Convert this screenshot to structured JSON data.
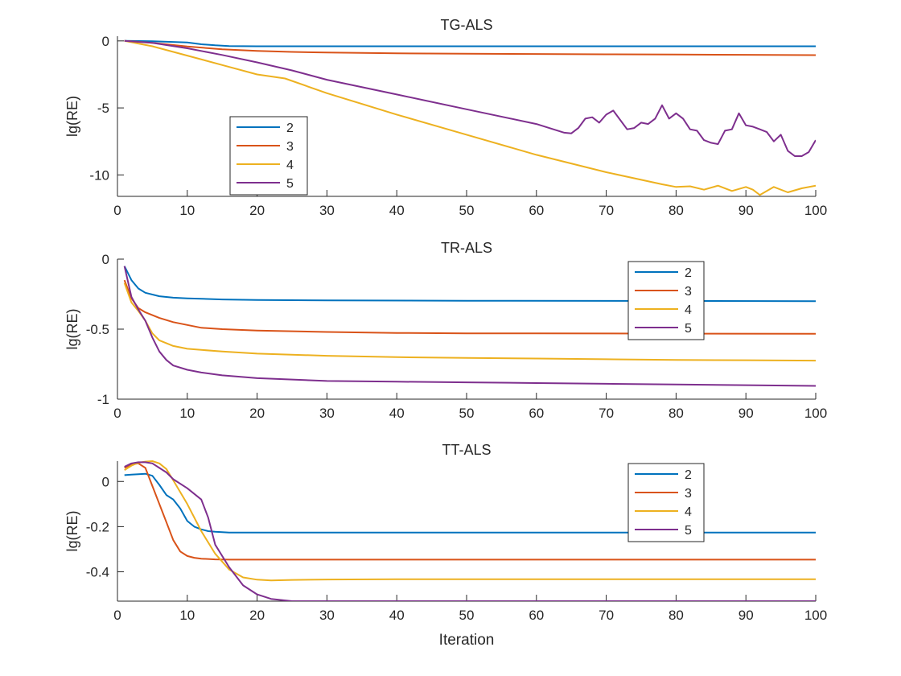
{
  "chart_data": [
    {
      "type": "line",
      "title": "TG-ALS",
      "xlabel": "",
      "ylabel": "lg(RE)",
      "xlim": [
        0,
        100
      ],
      "ylim": [
        -11.6,
        0.35
      ],
      "xticks": [
        0,
        10,
        20,
        30,
        40,
        50,
        60,
        70,
        80,
        90,
        100
      ],
      "yticks": [
        0,
        -5,
        -10
      ],
      "ytick_labels": [
        "0",
        "-5",
        "-10"
      ],
      "xtick_labels": [
        "0",
        "10",
        "20",
        "30",
        "40",
        "50",
        "60",
        "70",
        "80",
        "90",
        "100"
      ],
      "legend": "middle-left",
      "series": [
        {
          "name": "2",
          "color": "#0072BD",
          "x": [
            1,
            5,
            10,
            12,
            14,
            16,
            20,
            30,
            100
          ],
          "y": [
            0,
            -0.03,
            -0.12,
            -0.25,
            -0.33,
            -0.38,
            -0.4,
            -0.4,
            -0.4
          ]
        },
        {
          "name": "3",
          "color": "#D95319",
          "x": [
            1,
            5,
            10,
            15,
            20,
            25,
            30,
            40,
            50,
            60,
            70,
            80,
            90,
            100
          ],
          "y": [
            0,
            -0.15,
            -0.42,
            -0.62,
            -0.75,
            -0.82,
            -0.87,
            -0.93,
            -0.96,
            -0.98,
            -1.0,
            -1.02,
            -1.04,
            -1.06
          ]
        },
        {
          "name": "4",
          "color": "#EDB120",
          "x": [
            1,
            5,
            10,
            15,
            20,
            24,
            30,
            40,
            50,
            60,
            70,
            78,
            80,
            82,
            84,
            86,
            88,
            90,
            91,
            92,
            94,
            96,
            98,
            100
          ],
          "y": [
            0,
            -0.4,
            -1.1,
            -1.8,
            -2.5,
            -2.8,
            -3.9,
            -5.5,
            -7.0,
            -8.5,
            -9.8,
            -10.7,
            -10.9,
            -10.85,
            -11.1,
            -10.8,
            -11.2,
            -10.9,
            -11.1,
            -11.5,
            -10.9,
            -11.3,
            -11.0,
            -10.8
          ]
        },
        {
          "name": "5",
          "color": "#7E2F8E",
          "x": [
            1,
            5,
            10,
            15,
            20,
            25,
            30,
            40,
            50,
            60,
            64,
            65,
            66,
            67,
            68,
            69,
            70,
            71,
            72,
            73,
            74,
            75,
            76,
            77,
            78,
            79,
            80,
            81,
            82,
            83,
            84,
            85,
            86,
            87,
            88,
            89,
            90,
            91,
            92,
            93,
            94,
            95,
            96,
            97,
            98,
            99,
            100
          ],
          "y": [
            0,
            -0.15,
            -0.55,
            -1.05,
            -1.6,
            -2.2,
            -2.9,
            -4.0,
            -5.1,
            -6.2,
            -6.85,
            -6.9,
            -6.5,
            -5.8,
            -5.7,
            -6.1,
            -5.5,
            -5.2,
            -5.9,
            -6.6,
            -6.5,
            -6.1,
            -6.2,
            -5.8,
            -4.8,
            -5.8,
            -5.4,
            -5.8,
            -6.6,
            -6.7,
            -7.4,
            -7.6,
            -7.7,
            -6.7,
            -6.6,
            -5.4,
            -6.3,
            -6.4,
            -6.6,
            -6.8,
            -7.5,
            -7.0,
            -8.2,
            -8.6,
            -8.6,
            -8.3,
            -7.4
          ]
        }
      ]
    },
    {
      "type": "line",
      "title": "TR-ALS",
      "xlabel": "",
      "ylabel": "lg(RE)",
      "xlim": [
        0,
        100
      ],
      "ylim": [
        -1,
        0
      ],
      "xticks": [
        0,
        10,
        20,
        30,
        40,
        50,
        60,
        70,
        80,
        90,
        100
      ],
      "yticks": [
        0,
        -0.5,
        -1
      ],
      "ytick_labels": [
        "0",
        "-0.5",
        "-1"
      ],
      "xtick_labels": [
        "0",
        "10",
        "20",
        "30",
        "40",
        "50",
        "60",
        "70",
        "80",
        "90",
        "100"
      ],
      "legend": "top-right",
      "series": [
        {
          "name": "2",
          "color": "#0072BD",
          "x": [
            1,
            2,
            3,
            4,
            6,
            8,
            10,
            15,
            20,
            30,
            50,
            100
          ],
          "y": [
            -0.05,
            -0.15,
            -0.21,
            -0.24,
            -0.265,
            -0.275,
            -0.28,
            -0.288,
            -0.292,
            -0.295,
            -0.297,
            -0.3
          ]
        },
        {
          "name": "3",
          "color": "#D95319",
          "x": [
            1,
            2,
            3,
            4,
            6,
            8,
            10,
            12,
            15,
            20,
            30,
            40,
            50,
            60,
            80,
            100
          ],
          "y": [
            -0.15,
            -0.28,
            -0.35,
            -0.38,
            -0.42,
            -0.45,
            -0.47,
            -0.49,
            -0.5,
            -0.51,
            -0.52,
            -0.527,
            -0.53,
            -0.53,
            -0.532,
            -0.533
          ]
        },
        {
          "name": "4",
          "color": "#EDB120",
          "x": [
            1,
            2,
            3,
            4,
            5,
            6,
            8,
            10,
            15,
            20,
            30,
            40,
            50,
            60,
            70,
            80,
            90,
            100
          ],
          "y": [
            -0.17,
            -0.31,
            -0.37,
            -0.44,
            -0.53,
            -0.58,
            -0.62,
            -0.64,
            -0.66,
            -0.675,
            -0.69,
            -0.7,
            -0.705,
            -0.71,
            -0.715,
            -0.72,
            -0.722,
            -0.725
          ]
        },
        {
          "name": "5",
          "color": "#7E2F8E",
          "x": [
            1,
            2,
            3,
            4,
            5,
            6,
            7,
            8,
            10,
            12,
            15,
            20,
            30,
            40,
            50,
            60,
            70,
            80,
            90,
            100
          ],
          "y": [
            -0.05,
            -0.27,
            -0.36,
            -0.44,
            -0.56,
            -0.66,
            -0.72,
            -0.76,
            -0.79,
            -0.81,
            -0.83,
            -0.85,
            -0.87,
            -0.875,
            -0.88,
            -0.885,
            -0.89,
            -0.895,
            -0.9,
            -0.905
          ]
        }
      ]
    },
    {
      "type": "line",
      "title": "TT-ALS",
      "xlabel": "Iteration",
      "ylabel": "lg(RE)",
      "xlim": [
        0,
        100
      ],
      "ylim": [
        -0.53,
        0.09
      ],
      "xticks": [
        0,
        10,
        20,
        30,
        40,
        50,
        60,
        70,
        80,
        90,
        100
      ],
      "yticks": [
        0,
        -0.2,
        -0.4
      ],
      "ytick_labels": [
        "0",
        "-0.2",
        "-0.4"
      ],
      "xtick_labels": [
        "0",
        "10",
        "20",
        "30",
        "40",
        "50",
        "60",
        "70",
        "80",
        "90",
        "100"
      ],
      "legend": "top-right",
      "series": [
        {
          "name": "2",
          "color": "#0072BD",
          "x": [
            1,
            2,
            3,
            4,
            5,
            6,
            7,
            8,
            9,
            10,
            11,
            12,
            13,
            14,
            16,
            20,
            30,
            100
          ],
          "y": [
            0.028,
            0.03,
            0.032,
            0.034,
            0.025,
            -0.015,
            -0.06,
            -0.08,
            -0.12,
            -0.175,
            -0.2,
            -0.212,
            -0.22,
            -0.223,
            -0.226,
            -0.226,
            -0.226,
            -0.226
          ]
        },
        {
          "name": "3",
          "color": "#D95319",
          "x": [
            1,
            2,
            3,
            4,
            5,
            6,
            7,
            8,
            9,
            10,
            11,
            12,
            14,
            16,
            20,
            30,
            100
          ],
          "y": [
            0.06,
            0.075,
            0.08,
            0.06,
            -0.02,
            -0.1,
            -0.18,
            -0.26,
            -0.31,
            -0.33,
            -0.338,
            -0.342,
            -0.345,
            -0.346,
            -0.346,
            -0.346,
            -0.346
          ]
        },
        {
          "name": "4",
          "color": "#EDB120",
          "x": [
            1,
            2,
            3,
            4,
            5,
            6,
            7,
            8,
            10,
            12,
            14,
            16,
            18,
            20,
            22,
            25,
            30,
            40,
            50,
            100
          ],
          "y": [
            0.05,
            0.07,
            0.083,
            0.088,
            0.09,
            0.08,
            0.055,
            0.005,
            -0.1,
            -0.22,
            -0.32,
            -0.39,
            -0.425,
            -0.435,
            -0.438,
            -0.436,
            -0.434,
            -0.433,
            -0.433,
            -0.433
          ]
        },
        {
          "name": "5",
          "color": "#7E2F8E",
          "x": [
            1,
            2,
            3,
            4,
            5,
            6,
            7,
            8,
            10,
            12,
            13,
            14,
            16,
            18,
            20,
            22,
            25,
            30,
            100
          ],
          "y": [
            0.065,
            0.08,
            0.085,
            0.085,
            0.08,
            0.06,
            0.04,
            0.01,
            -0.03,
            -0.08,
            -0.16,
            -0.28,
            -0.38,
            -0.46,
            -0.5,
            -0.52,
            -0.53,
            -0.53,
            -0.53
          ]
        }
      ]
    }
  ]
}
